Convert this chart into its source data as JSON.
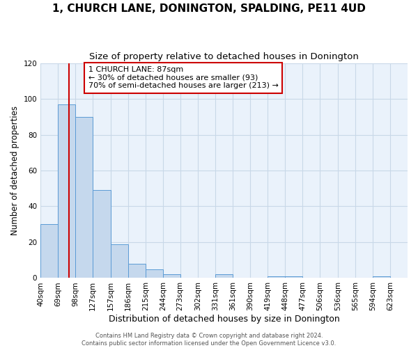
{
  "title": "1, CHURCH LANE, DONINGTON, SPALDING, PE11 4UD",
  "subtitle": "Size of property relative to detached houses in Donington",
  "xlabel": "Distribution of detached houses by size in Donington",
  "ylabel": "Number of detached properties",
  "bar_labels": [
    "40sqm",
    "69sqm",
    "98sqm",
    "127sqm",
    "157sqm",
    "186sqm",
    "215sqm",
    "244sqm",
    "273sqm",
    "302sqm",
    "331sqm",
    "361sqm",
    "390sqm",
    "419sqm",
    "448sqm",
    "477sqm",
    "506sqm",
    "536sqm",
    "565sqm",
    "594sqm",
    "623sqm"
  ],
  "bar_values": [
    30,
    97,
    90,
    49,
    19,
    8,
    5,
    2,
    0,
    0,
    2,
    0,
    0,
    1,
    1,
    0,
    0,
    0,
    0,
    1,
    0
  ],
  "bin_edges": [
    40,
    69,
    98,
    127,
    157,
    186,
    215,
    244,
    273,
    302,
    331,
    361,
    390,
    419,
    448,
    477,
    506,
    536,
    565,
    594,
    623,
    652
  ],
  "bar_color": "#c5d8ed",
  "bar_edge_color": "#5b9bd5",
  "vline_x": 87,
  "vline_color": "#cc0000",
  "ylim": [
    0,
    120
  ],
  "yticks": [
    0,
    20,
    40,
    60,
    80,
    100,
    120
  ],
  "annotation_title": "1 CHURCH LANE: 87sqm",
  "annotation_line1": "← 30% of detached houses are smaller (93)",
  "annotation_line2": "70% of semi-detached houses are larger (213) →",
  "annotation_box_color": "#ffffff",
  "annotation_box_edge": "#cc0000",
  "footer1": "Contains HM Land Registry data © Crown copyright and database right 2024.",
  "footer2": "Contains public sector information licensed under the Open Government Licence v3.0.",
  "background_color": "#ffffff",
  "plot_bg_color": "#eaf2fb",
  "grid_color": "#c8d8e8",
  "title_fontsize": 11,
  "subtitle_fontsize": 9.5,
  "xlabel_fontsize": 9,
  "ylabel_fontsize": 8.5,
  "tick_fontsize": 7.5,
  "annotation_fontsize": 8,
  "footer_fontsize": 6
}
